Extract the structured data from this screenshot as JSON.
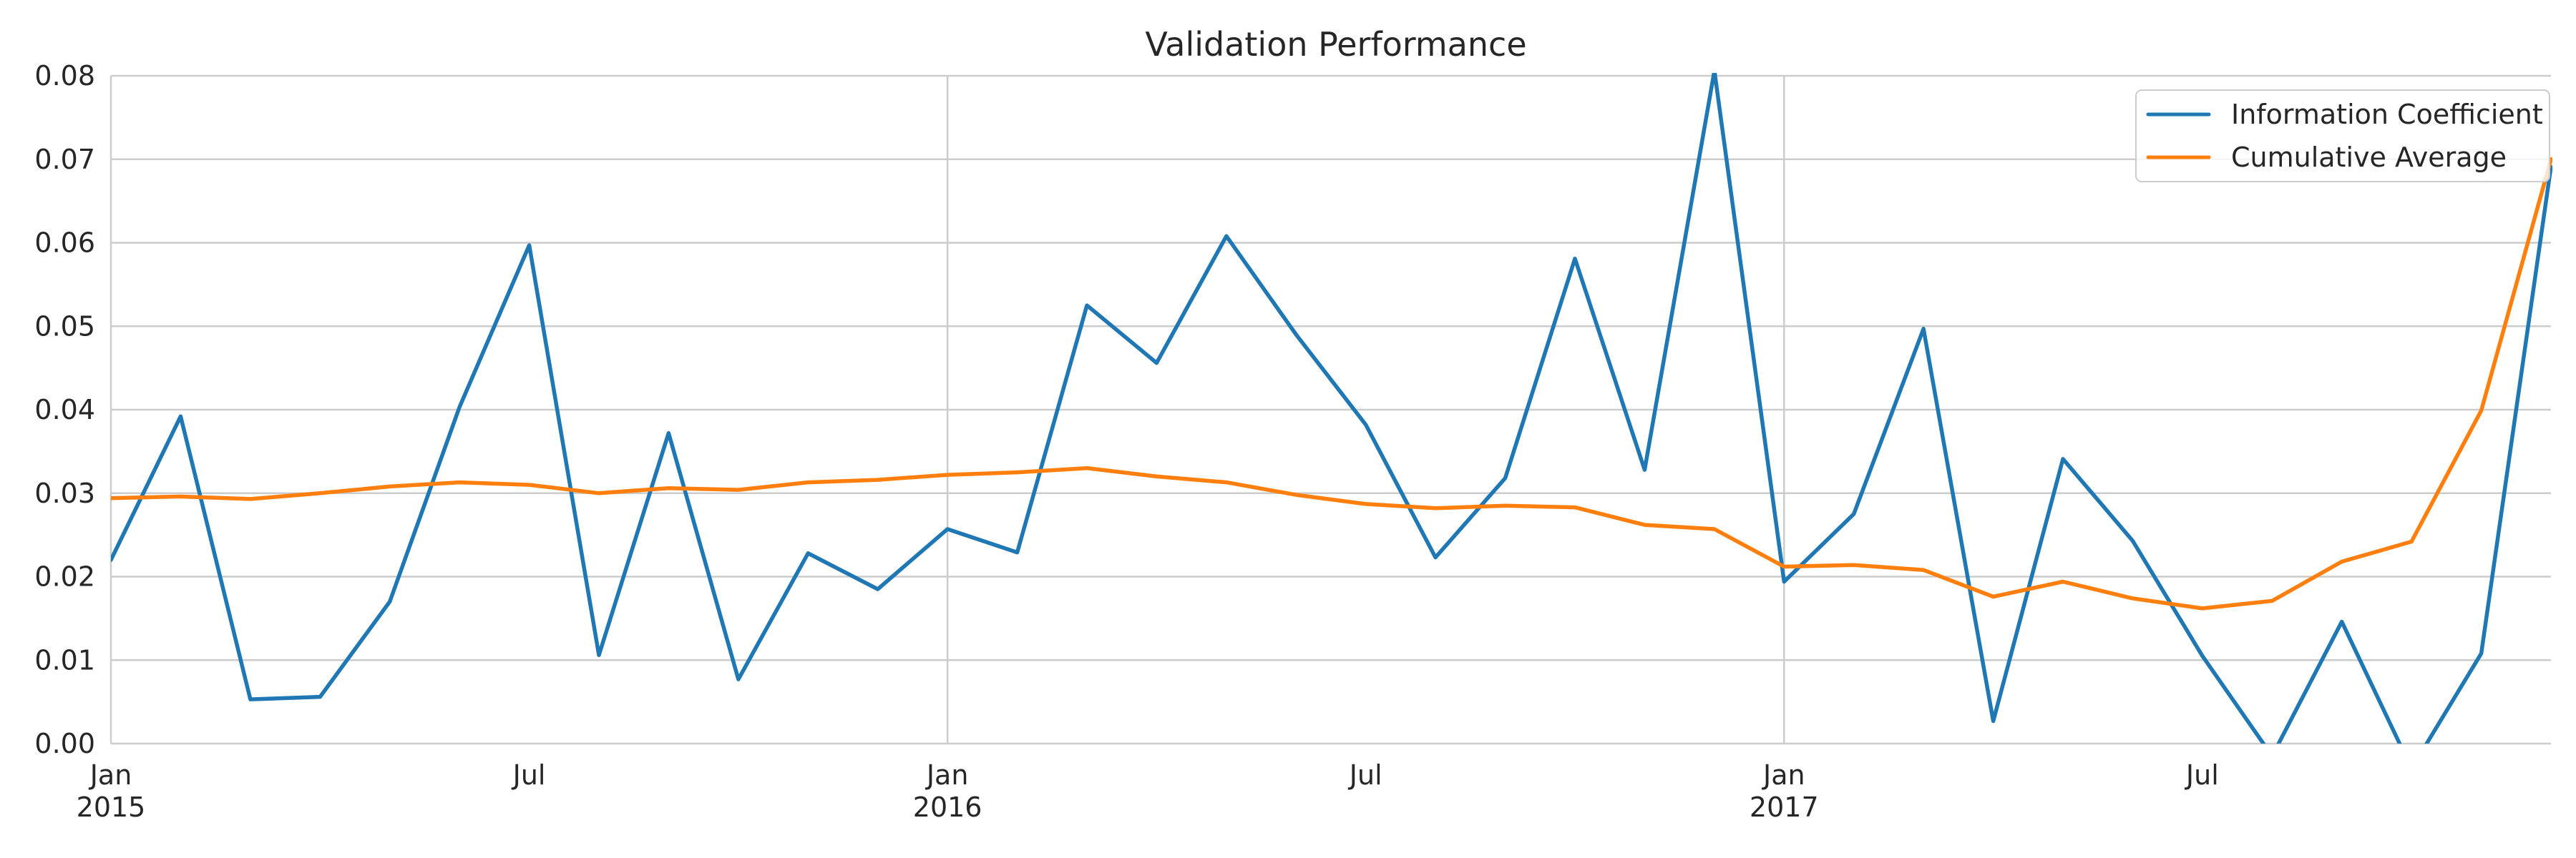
{
  "chart_data": {
    "type": "line",
    "title": "Validation Performance",
    "xlabel": "",
    "ylabel": "",
    "x": [
      "2015-01",
      "2015-02",
      "2015-03",
      "2015-04",
      "2015-05",
      "2015-06",
      "2015-07",
      "2015-08",
      "2015-09",
      "2015-10",
      "2015-11",
      "2015-12",
      "2016-01",
      "2016-02",
      "2016-03",
      "2016-04",
      "2016-05",
      "2016-06",
      "2016-07",
      "2016-08",
      "2016-09",
      "2016-10",
      "2016-11",
      "2016-12",
      "2017-01",
      "2017-02",
      "2017-03",
      "2017-04",
      "2017-05",
      "2017-06",
      "2017-07",
      "2017-08",
      "2017-09",
      "2017-10",
      "2017-11",
      "2017-12"
    ],
    "series": [
      {
        "name": "Information Coefficient",
        "color": "#1f77b4",
        "values": [
          0.022,
          0.0392,
          0.0053,
          0.0056,
          0.017,
          0.0403,
          0.0597,
          0.0106,
          0.0372,
          0.0077,
          0.0228,
          0.0185,
          0.0257,
          0.0229,
          0.0525,
          0.0456,
          0.0608,
          0.049,
          0.0382,
          0.0223,
          0.0318,
          0.0581,
          0.0328,
          0.0806,
          0.0194,
          0.0275,
          0.0497,
          0.0027,
          0.0341,
          0.0243,
          0.0105,
          -0.0015,
          0.0146,
          -0.003,
          0.0108,
          0.0691
        ]
      },
      {
        "name": "Cumulative Average",
        "color": "#ff7f0e",
        "values": [
          0.0294,
          0.0296,
          0.0293,
          0.03,
          0.0308,
          0.0313,
          0.031,
          0.03,
          0.0306,
          0.0304,
          0.0313,
          0.0316,
          0.0322,
          0.0325,
          0.033,
          0.032,
          0.0313,
          0.0298,
          0.0287,
          0.0282,
          0.0285,
          0.0283,
          0.0262,
          0.0257,
          0.0212,
          0.0214,
          0.0208,
          0.0176,
          0.0194,
          0.0174,
          0.0162,
          0.0171,
          0.0218,
          0.0242,
          0.0399,
          0.07
        ]
      }
    ],
    "ylim": [
      0.0,
      0.08
    ],
    "yticks": [
      "0.00",
      "0.01",
      "0.02",
      "0.03",
      "0.04",
      "0.05",
      "0.06",
      "0.07",
      "0.08"
    ],
    "xticks": [
      {
        "month": "Jan",
        "year": "2015",
        "at": "2015-01"
      },
      {
        "month": "Jul",
        "year": "",
        "at": "2015-07"
      },
      {
        "month": "Jan",
        "year": "2016",
        "at": "2016-01"
      },
      {
        "month": "Jul",
        "year": "",
        "at": "2016-07"
      },
      {
        "month": "Jan",
        "year": "2017",
        "at": "2017-01"
      },
      {
        "month": "Jul",
        "year": "",
        "at": "2017-07"
      }
    ],
    "major_gridlines_at": [
      "2016-01",
      "2017-01"
    ],
    "grid": true,
    "legend_position": "top-right"
  }
}
